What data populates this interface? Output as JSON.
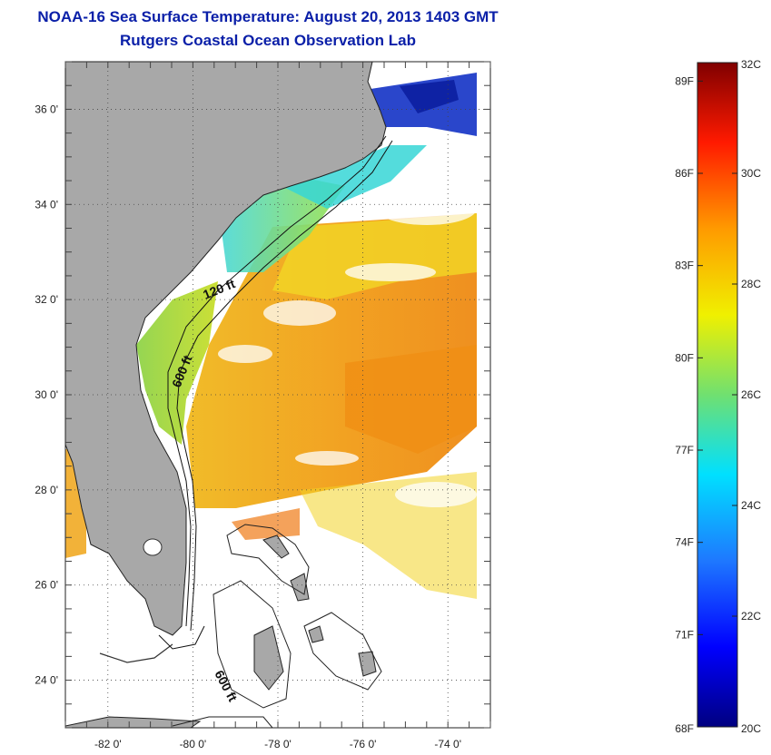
{
  "header": {
    "title": "NOAA-16 Sea Surface Temperature:  August 20, 2013 1403 GMT",
    "subtitle": "Rutgers Coastal Ocean Observation Lab"
  },
  "map": {
    "lon_range": [
      -83,
      -73
    ],
    "lat_range": [
      23,
      37
    ],
    "lat_ticks": [
      {
        "value": 36,
        "label": "36 0'"
      },
      {
        "value": 34,
        "label": "34 0'"
      },
      {
        "value": 32,
        "label": "32 0'"
      },
      {
        "value": 30,
        "label": "30 0'"
      },
      {
        "value": 28,
        "label": "28 0'"
      },
      {
        "value": 26,
        "label": "26 0'"
      },
      {
        "value": 24,
        "label": "24 0'"
      }
    ],
    "lon_ticks": [
      {
        "value": -82,
        "label": "-82 0'"
      },
      {
        "value": -80,
        "label": "-80 0'"
      },
      {
        "value": -78,
        "label": "-78 0'"
      },
      {
        "value": -76,
        "label": "-76 0'"
      },
      {
        "value": -74,
        "label": "-74 0'"
      }
    ],
    "contour_labels": {
      "c120": "120 ft",
      "c600a": "600 ft",
      "c600b": "600 ft"
    },
    "colors": {
      "land": "#a8a8a8",
      "grid": "#555555"
    }
  },
  "colorbar": {
    "range_c": [
      20,
      32
    ],
    "celsius_labels": [
      "32C",
      "30C",
      "28C",
      "26C",
      "24C",
      "22C",
      "20C"
    ],
    "fahrenheit_labels": [
      "89F",
      "86F",
      "83F",
      "80F",
      "77F",
      "74F",
      "71F",
      "68F"
    ]
  }
}
